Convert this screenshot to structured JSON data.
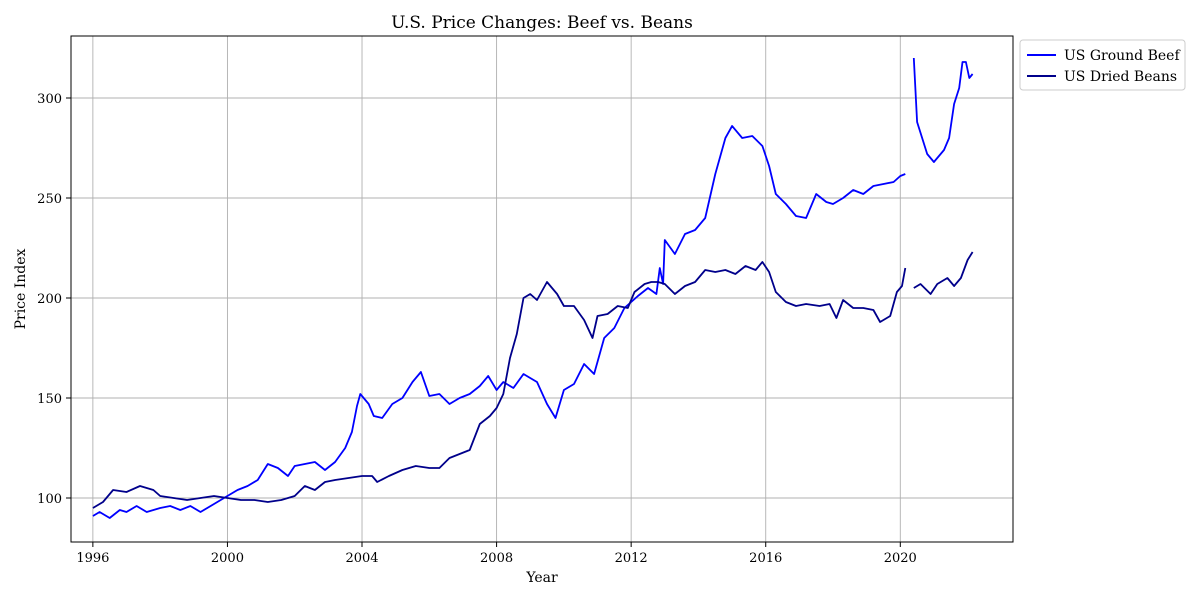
{
  "chart_data": {
    "type": "line",
    "title": "U.S. Price Changes: Beef vs. Beans",
    "xlabel": "Year",
    "ylabel": "Price Index",
    "xlim": [
      1995.35,
      2023.35
    ],
    "ylim": [
      78,
      331
    ],
    "x_ticks": [
      1996,
      2000,
      2004,
      2008,
      2012,
      2016,
      2020
    ],
    "y_ticks": [
      100,
      150,
      200,
      250,
      300
    ],
    "grid": true,
    "legend_position": "outside-top-right",
    "series": [
      {
        "name": "US Ground Beef",
        "color": "#0000ff",
        "points": [
          [
            1996.0,
            91
          ],
          [
            1996.2,
            93
          ],
          [
            1996.5,
            90
          ],
          [
            1996.8,
            94
          ],
          [
            1997.0,
            93
          ],
          [
            1997.3,
            96
          ],
          [
            1997.6,
            93
          ],
          [
            1998.0,
            95
          ],
          [
            1998.3,
            96
          ],
          [
            1998.6,
            94
          ],
          [
            1998.9,
            96
          ],
          [
            1999.2,
            93
          ],
          [
            1999.6,
            97
          ],
          [
            2000.0,
            101
          ],
          [
            2000.3,
            104
          ],
          [
            2000.6,
            106
          ],
          [
            2000.9,
            109
          ],
          [
            2001.2,
            117
          ],
          [
            2001.5,
            115
          ],
          [
            2001.8,
            111
          ],
          [
            2002.0,
            116
          ],
          [
            2002.3,
            117
          ],
          [
            2002.6,
            118
          ],
          [
            2002.9,
            114
          ],
          [
            2003.2,
            118
          ],
          [
            2003.5,
            125
          ],
          [
            2003.7,
            133
          ],
          [
            2003.85,
            146
          ],
          [
            2003.95,
            152
          ],
          [
            2004.2,
            147
          ],
          [
            2004.35,
            141
          ],
          [
            2004.6,
            140
          ],
          [
            2004.9,
            147
          ],
          [
            2005.2,
            150
          ],
          [
            2005.5,
            158
          ],
          [
            2005.75,
            163
          ],
          [
            2006.0,
            151
          ],
          [
            2006.3,
            152
          ],
          [
            2006.6,
            147
          ],
          [
            2006.9,
            150
          ],
          [
            2007.2,
            152
          ],
          [
            2007.5,
            156
          ],
          [
            2007.75,
            161
          ],
          [
            2008.0,
            154
          ],
          [
            2008.2,
            158
          ],
          [
            2008.5,
            155
          ],
          [
            2008.8,
            162
          ],
          [
            2009.0,
            160
          ],
          [
            2009.2,
            158
          ],
          [
            2009.5,
            147
          ],
          [
            2009.75,
            140
          ],
          [
            2010.0,
            154
          ],
          [
            2010.3,
            157
          ],
          [
            2010.6,
            167
          ],
          [
            2010.9,
            162
          ],
          [
            2011.2,
            180
          ],
          [
            2011.5,
            185
          ],
          [
            2011.8,
            195
          ],
          [
            2012.0,
            198
          ],
          [
            2012.2,
            201
          ],
          [
            2012.5,
            205
          ],
          [
            2012.75,
            202
          ],
          [
            2012.85,
            215
          ],
          [
            2012.95,
            207
          ],
          [
            2013.0,
            229
          ],
          [
            2013.3,
            222
          ],
          [
            2013.6,
            232
          ],
          [
            2013.9,
            234
          ],
          [
            2014.2,
            240
          ],
          [
            2014.5,
            262
          ],
          [
            2014.8,
            280
          ],
          [
            2015.0,
            286
          ],
          [
            2015.3,
            280
          ],
          [
            2015.6,
            281
          ],
          [
            2015.9,
            276
          ],
          [
            2016.1,
            266
          ],
          [
            2016.3,
            252
          ],
          [
            2016.6,
            247
          ],
          [
            2016.9,
            241
          ],
          [
            2017.2,
            240
          ],
          [
            2017.5,
            252
          ],
          [
            2017.8,
            248
          ],
          [
            2018.0,
            247
          ],
          [
            2018.3,
            250
          ],
          [
            2018.6,
            254
          ],
          [
            2018.9,
            252
          ],
          [
            2019.2,
            256
          ],
          [
            2019.5,
            257
          ],
          [
            2019.8,
            258
          ],
          [
            2020.0,
            261
          ],
          [
            2020.15,
            262
          ],
          [
            2020.4,
            null
          ],
          [
            2020.4,
            320
          ],
          [
            2020.5,
            288
          ],
          [
            2020.8,
            272
          ],
          [
            2021.0,
            268
          ],
          [
            2021.3,
            274
          ],
          [
            2021.45,
            280
          ],
          [
            2021.6,
            297
          ],
          [
            2021.75,
            305
          ],
          [
            2021.85,
            318
          ],
          [
            2021.95,
            318
          ],
          [
            2022.05,
            310
          ],
          [
            2022.15,
            312
          ]
        ]
      },
      {
        "name": "US Dried Beans",
        "color": "#00008b",
        "points": [
          [
            1996.0,
            95
          ],
          [
            1996.3,
            98
          ],
          [
            1996.6,
            104
          ],
          [
            1997.0,
            103
          ],
          [
            1997.4,
            106
          ],
          [
            1997.8,
            104
          ],
          [
            1998.0,
            101
          ],
          [
            1998.4,
            100
          ],
          [
            1998.8,
            99
          ],
          [
            1999.2,
            100
          ],
          [
            1999.6,
            101
          ],
          [
            2000.0,
            100
          ],
          [
            2000.4,
            99
          ],
          [
            2000.8,
            99
          ],
          [
            2001.2,
            98
          ],
          [
            2001.6,
            99
          ],
          [
            2002.0,
            101
          ],
          [
            2002.3,
            106
          ],
          [
            2002.6,
            104
          ],
          [
            2002.9,
            108
          ],
          [
            2003.2,
            109
          ],
          [
            2003.6,
            110
          ],
          [
            2004.0,
            111
          ],
          [
            2004.3,
            111
          ],
          [
            2004.45,
            108
          ],
          [
            2004.8,
            111
          ],
          [
            2005.2,
            114
          ],
          [
            2005.6,
            116
          ],
          [
            2006.0,
            115
          ],
          [
            2006.3,
            115
          ],
          [
            2006.6,
            120
          ],
          [
            2006.9,
            122
          ],
          [
            2007.2,
            124
          ],
          [
            2007.5,
            137
          ],
          [
            2007.8,
            141
          ],
          [
            2008.0,
            145
          ],
          [
            2008.2,
            152
          ],
          [
            2008.4,
            170
          ],
          [
            2008.6,
            182
          ],
          [
            2008.8,
            200
          ],
          [
            2009.0,
            202
          ],
          [
            2009.2,
            199
          ],
          [
            2009.5,
            208
          ],
          [
            2009.8,
            202
          ],
          [
            2010.0,
            196
          ],
          [
            2010.3,
            196
          ],
          [
            2010.6,
            189
          ],
          [
            2010.85,
            180
          ],
          [
            2011.0,
            191
          ],
          [
            2011.3,
            192
          ],
          [
            2011.6,
            196
          ],
          [
            2011.9,
            195
          ],
          [
            2012.1,
            203
          ],
          [
            2012.4,
            207
          ],
          [
            2012.6,
            208
          ],
          [
            2012.8,
            208
          ],
          [
            2013.0,
            207
          ],
          [
            2013.3,
            202
          ],
          [
            2013.6,
            206
          ],
          [
            2013.9,
            208
          ],
          [
            2014.2,
            214
          ],
          [
            2014.5,
            213
          ],
          [
            2014.8,
            214
          ],
          [
            2015.1,
            212
          ],
          [
            2015.4,
            216
          ],
          [
            2015.7,
            214
          ],
          [
            2015.9,
            218
          ],
          [
            2016.1,
            213
          ],
          [
            2016.3,
            203
          ],
          [
            2016.6,
            198
          ],
          [
            2016.9,
            196
          ],
          [
            2017.2,
            197
          ],
          [
            2017.6,
            196
          ],
          [
            2017.9,
            197
          ],
          [
            2018.1,
            190
          ],
          [
            2018.3,
            199
          ],
          [
            2018.6,
            195
          ],
          [
            2018.9,
            195
          ],
          [
            2019.2,
            194
          ],
          [
            2019.4,
            188
          ],
          [
            2019.7,
            191
          ],
          [
            2019.9,
            203
          ],
          [
            2020.05,
            206
          ],
          [
            2020.15,
            215
          ],
          [
            2020.4,
            null
          ],
          [
            2020.4,
            205
          ],
          [
            2020.6,
            207
          ],
          [
            2020.9,
            202
          ],
          [
            2021.1,
            207
          ],
          [
            2021.4,
            210
          ],
          [
            2021.6,
            206
          ],
          [
            2021.8,
            210
          ],
          [
            2022.0,
            219
          ],
          [
            2022.15,
            223
          ]
        ]
      }
    ]
  }
}
